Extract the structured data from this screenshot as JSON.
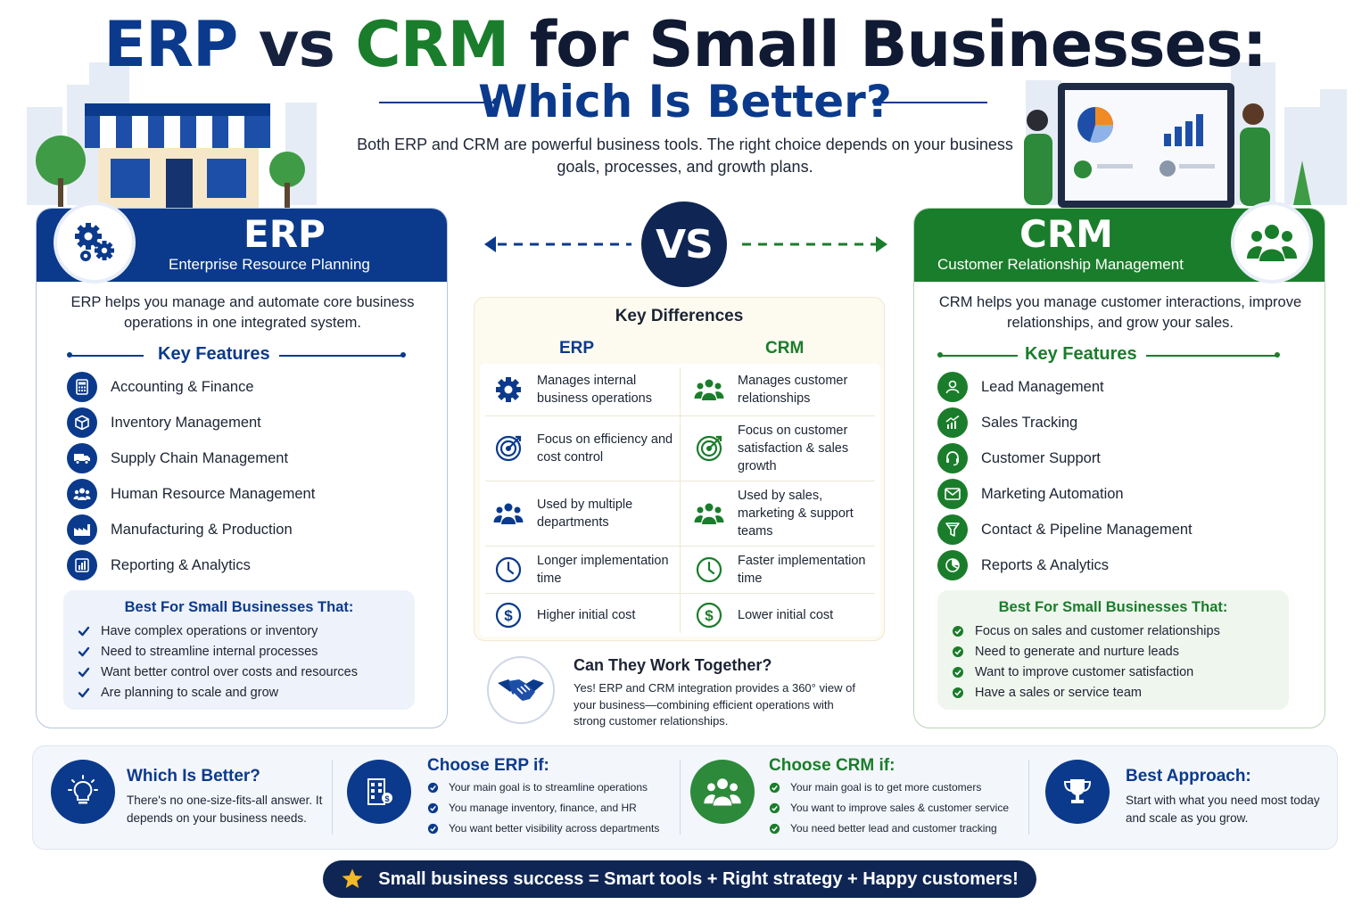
{
  "title": {
    "erp": "ERP",
    "vs": "vs",
    "crm": "CRM",
    "rest": "for Small Businesses:",
    "line2": "Which Is Better?"
  },
  "subtitle": "Both ERP and CRM are powerful business tools. The right choice depends on your business goals, processes, and growth plans.",
  "colors": {
    "erp_blue": "#0b3a8c",
    "crm_green": "#1a7d2b",
    "navy": "#0f2654"
  },
  "erp": {
    "title": "ERP",
    "subtitle": "Enterprise Resource Planning",
    "description": "ERP helps you manage and automate core business operations in one integrated system.",
    "key_features_title": "Key Features",
    "features": [
      {
        "label": "Accounting & Finance",
        "icon": "calculator-icon"
      },
      {
        "label": "Inventory Management",
        "icon": "box-icon"
      },
      {
        "label": "Supply Chain Management",
        "icon": "truck-icon"
      },
      {
        "label": "Human Resource Management",
        "icon": "people-icon"
      },
      {
        "label": "Manufacturing & Production",
        "icon": "factory-icon"
      },
      {
        "label": "Reporting & Analytics",
        "icon": "bar-chart-icon"
      }
    ],
    "best_for_title": "Best For Small Businesses That:",
    "best_for": [
      "Have complex operations or inventory",
      "Need to streamline internal processes",
      "Want better control over costs and resources",
      "Are planning to scale and grow"
    ]
  },
  "crm": {
    "title": "CRM",
    "subtitle": "Customer Relationship Management",
    "description": "CRM helps you manage customer interactions, improve relationships, and grow your sales.",
    "key_features_title": "Key Features",
    "features": [
      {
        "label": "Lead Management",
        "icon": "user-icon"
      },
      {
        "label": "Sales Tracking",
        "icon": "growth-chart-icon"
      },
      {
        "label": "Customer Support",
        "icon": "headset-icon"
      },
      {
        "label": "Marketing Automation",
        "icon": "envelope-icon"
      },
      {
        "label": "Contact & Pipeline Management",
        "icon": "funnel-icon"
      },
      {
        "label": "Reports & Analytics",
        "icon": "pie-chart-icon"
      }
    ],
    "best_for_title": "Best For Small Businesses That:",
    "best_for": [
      "Focus on sales and customer relationships",
      "Need to generate and nurture leads",
      "Want to improve customer satisfaction",
      "Have a sales or service team"
    ]
  },
  "vs_label": "VS",
  "key_differences": {
    "title": "Key Differences",
    "col_erp": "ERP",
    "col_crm": "CRM",
    "rows": [
      {
        "erp": "Manages internal business operations",
        "crm": "Manages customer relationships",
        "erp_icon": "gear-icon",
        "crm_icon": "people-icon"
      },
      {
        "erp": "Focus on efficiency and cost control",
        "crm": "Focus on customer satisfaction & sales growth",
        "erp_icon": "target-icon",
        "crm_icon": "target-icon"
      },
      {
        "erp": "Used by multiple departments",
        "crm": "Used by sales, marketing & support teams",
        "erp_icon": "people-icon",
        "crm_icon": "people-icon"
      },
      {
        "erp": "Longer implementation time",
        "crm": "Faster implementation time",
        "erp_icon": "clock-icon",
        "crm_icon": "clock-icon"
      },
      {
        "erp": "Higher initial cost",
        "crm": "Lower initial cost",
        "erp_icon": "dollar-icon",
        "crm_icon": "dollar-icon"
      }
    ]
  },
  "together": {
    "title": "Can They Work Together?",
    "text": "Yes! ERP and CRM integration provides a 360° view of your business—combining efficient operations with strong customer relationships."
  },
  "bottom": {
    "which": {
      "title": "Which Is Better?",
      "text": "There's no one-size-fits-all answer. It depends on your business needs."
    },
    "choose_erp": {
      "title": "Choose ERP if:",
      "items": [
        "Your main goal is to streamline operations",
        "You manage inventory, finance, and HR",
        "You want better visibility across departments"
      ]
    },
    "choose_crm": {
      "title": "Choose CRM if:",
      "items": [
        "Your main goal is to get more customers",
        "You want to improve sales & customer service",
        "You need better lead and customer tracking"
      ]
    },
    "approach": {
      "title": "Best Approach:",
      "text": "Start with what you need most today and scale as you grow."
    }
  },
  "footer": "Small business success = Smart tools + Right strategy + Happy customers!"
}
